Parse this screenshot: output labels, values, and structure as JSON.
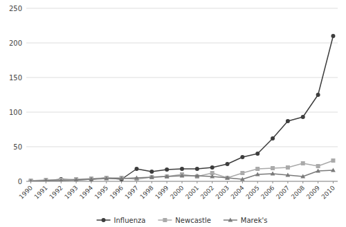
{
  "chart_data": {
    "type": "line",
    "x": [
      1990,
      1991,
      1992,
      1993,
      1994,
      1995,
      1996,
      1997,
      1998,
      1999,
      2000,
      2001,
      2002,
      2003,
      2004,
      2005,
      2006,
      2007,
      2008,
      2009,
      2010
    ],
    "series": [
      {
        "name": "Influenza",
        "color": "#3d3d3d",
        "marker": "circle",
        "values": [
          1,
          1,
          3,
          2,
          3,
          5,
          3,
          18,
          14,
          17,
          18,
          18,
          20,
          25,
          35,
          40,
          62,
          87,
          93,
          125,
          210
        ]
      },
      {
        "name": "Newcastle",
        "color": "#aaaaaa",
        "marker": "square",
        "values": [
          1,
          2,
          2,
          3,
          4,
          5,
          5,
          3,
          6,
          7,
          10,
          7,
          12,
          5,
          12,
          18,
          19,
          20,
          26,
          22,
          30
        ]
      },
      {
        "name": "Marek's",
        "color": "#7a7a7a",
        "marker": "triangle",
        "values": [
          0,
          1,
          1,
          2,
          3,
          4,
          4,
          5,
          6,
          7,
          8,
          8,
          7,
          5,
          3,
          10,
          11,
          9,
          7,
          15,
          16
        ]
      }
    ],
    "xlim": [
      1989.7,
      2010.3
    ],
    "xticks": [
      1990,
      1991,
      1992,
      1993,
      1994,
      1995,
      1996,
      1997,
      1998,
      1999,
      2000,
      2001,
      2002,
      2003,
      2004,
      2005,
      2006,
      2007,
      2008,
      2009,
      2010
    ],
    "ylim": [
      0,
      250
    ],
    "yticks": [
      0,
      50,
      100,
      150,
      200,
      250
    ],
    "grid": true,
    "legend": "bottom"
  }
}
